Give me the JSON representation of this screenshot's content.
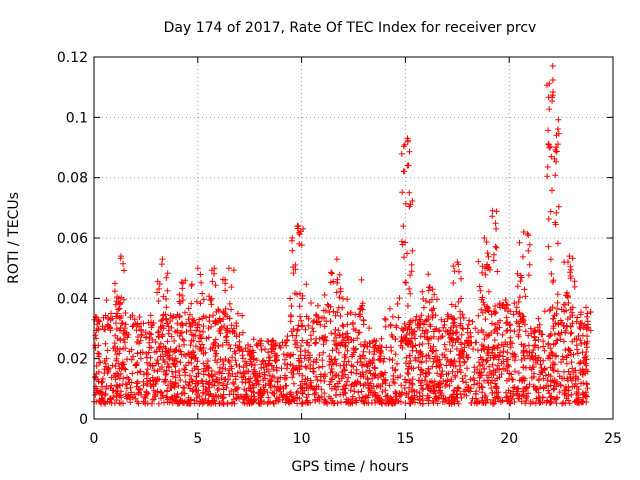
{
  "chart_data": {
    "type": "scatter",
    "title": "Day 174 of 2017, Rate Of TEC Index for receiver prcv",
    "xlabel": "GPS time / hours",
    "ylabel": "ROTI / TECUs",
    "xlim": [
      0,
      25
    ],
    "ylim": [
      0,
      0.12
    ],
    "x_ticks": [
      0,
      5,
      10,
      15,
      20,
      25
    ],
    "x_tick_labels": [
      "0",
      "5",
      "10",
      "15",
      "20",
      "25"
    ],
    "y_ticks": [
      0,
      0.02,
      0.04,
      0.06,
      0.08,
      0.1,
      0.12
    ],
    "y_tick_labels": [
      "0",
      "0.02",
      "0.04",
      "0.06",
      "0.08",
      "0.1",
      "0.12"
    ],
    "grid": true,
    "marker": "+",
    "color": "#ff0000",
    "x_range_data": [
      0,
      23.8
    ],
    "baseline_range": [
      0.005,
      0.035
    ],
    "spikes": [
      {
        "x": 1.3,
        "peak": 0.054
      },
      {
        "x": 3.3,
        "peak": 0.053
      },
      {
        "x": 4.4,
        "peak": 0.046
      },
      {
        "x": 5.0,
        "peak": 0.05
      },
      {
        "x": 5.8,
        "peak": 0.05
      },
      {
        "x": 6.5,
        "peak": 0.05
      },
      {
        "x": 9.8,
        "peak": 0.064
      },
      {
        "x": 11.7,
        "peak": 0.053
      },
      {
        "x": 15.1,
        "peak": 0.093
      },
      {
        "x": 16.1,
        "peak": 0.048
      },
      {
        "x": 17.5,
        "peak": 0.052
      },
      {
        "x": 18.8,
        "peak": 0.06
      },
      {
        "x": 19.2,
        "peak": 0.069
      },
      {
        "x": 20.7,
        "peak": 0.062
      },
      {
        "x": 22.1,
        "peak": 0.117
      },
      {
        "x": 22.9,
        "peak": 0.054
      },
      {
        "x": 23.7,
        "peak": 0.037
      }
    ]
  }
}
